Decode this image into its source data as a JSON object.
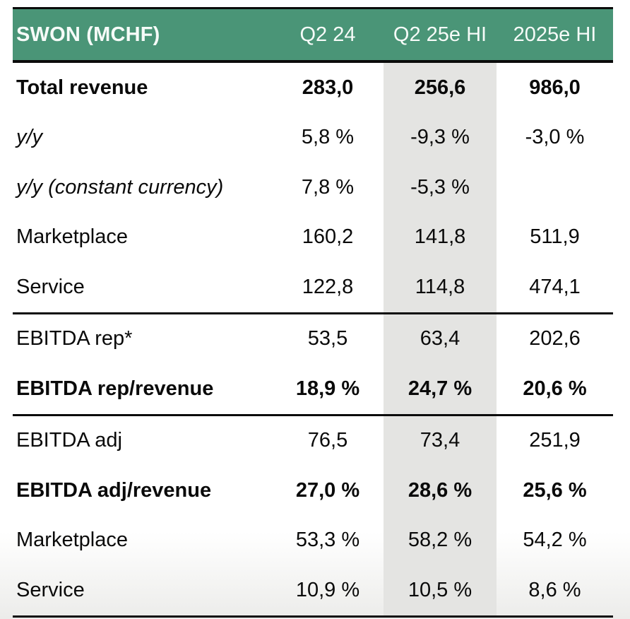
{
  "chart_data": {
    "type": "table",
    "title": "SWON (MCHF)",
    "columns": [
      "Q2 24",
      "Q2 25e HI",
      "2025e HI"
    ],
    "highlight_column": "Q2 25e HI",
    "rows": [
      {
        "label": "Total revenue",
        "values": [
          "283,0",
          "256,6",
          "986,0"
        ],
        "style": "bold",
        "divider_after": false
      },
      {
        "label": "y/y",
        "values": [
          "5,8 %",
          "-9,3 %",
          "-3,0 %"
        ],
        "style": "italic-label",
        "divider_after": false
      },
      {
        "label": "y/y (constant currency)",
        "values": [
          "7,8 %",
          "-5,3 %",
          ""
        ],
        "style": "italic-label",
        "divider_after": false
      },
      {
        "label": "Marketplace",
        "values": [
          "160,2",
          "141,8",
          "511,9"
        ],
        "style": "normal",
        "divider_after": false
      },
      {
        "label": "Service",
        "values": [
          "122,8",
          "114,8",
          "474,1"
        ],
        "style": "normal",
        "divider_after": true
      },
      {
        "label": "EBITDA rep*",
        "values": [
          "53,5",
          "63,4",
          "202,6"
        ],
        "style": "normal",
        "divider_after": false
      },
      {
        "label": "EBITDA rep/revenue",
        "values": [
          "18,9 %",
          "24,7 %",
          "20,6 %"
        ],
        "style": "bold",
        "divider_after": true
      },
      {
        "label": "EBITDA adj",
        "values": [
          "76,5",
          "73,4",
          "251,9"
        ],
        "style": "normal",
        "divider_after": false
      },
      {
        "label": "EBITDA adj/revenue",
        "values": [
          "27,0 %",
          "28,6 %",
          "25,6 %"
        ],
        "style": "bold",
        "divider_after": false
      },
      {
        "label": "Marketplace",
        "values": [
          "53,3 %",
          "58,2 %",
          "54,2 %"
        ],
        "style": "normal",
        "divider_after": false
      },
      {
        "label": "Service",
        "values": [
          "10,9 %",
          "10,5 %",
          "8,6 %"
        ],
        "style": "normal",
        "divider_after": false
      }
    ],
    "colors": {
      "header_bg": "#4A9577",
      "header_text": "#F6FBF8",
      "highlight_bg": "#E4E4E2",
      "border": "#0B0B0B",
      "text": "#0A0A0A"
    },
    "layout_hints": {
      "grid": "off",
      "value_alignment": "center",
      "label_alignment": "left"
    }
  }
}
